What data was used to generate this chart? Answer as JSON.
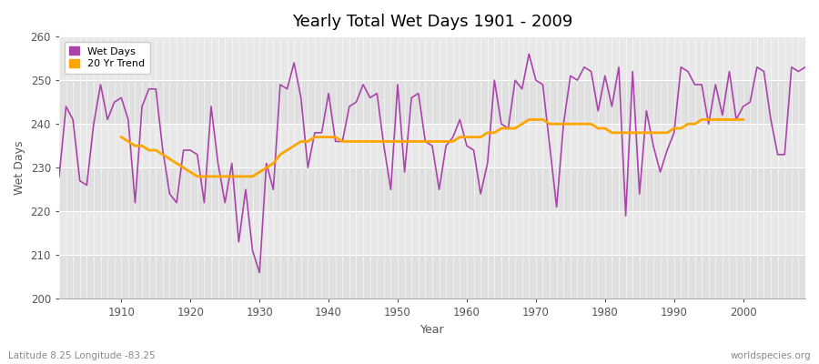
{
  "title": "Yearly Total Wet Days 1901 - 2009",
  "xlabel": "Year",
  "ylabel": "Wet Days",
  "subtitle_left": "Latitude 8.25 Longitude -83.25",
  "subtitle_right": "worldspecies.org",
  "ylim": [
    200,
    260
  ],
  "xlim": [
    1901,
    2009
  ],
  "yticks": [
    200,
    210,
    220,
    230,
    240,
    250,
    260
  ],
  "xticks": [
    1910,
    1920,
    1930,
    1940,
    1950,
    1960,
    1970,
    1980,
    1990,
    2000
  ],
  "line_color": "#AA44AA",
  "trend_color": "#FFA500",
  "fig_bg_color": "#FFFFFF",
  "plot_bg_color": "#E8E8E8",
  "band_color_dark": "#DCDCDC",
  "band_color_light": "#EBEBEB",
  "legend_wet": "Wet Days",
  "legend_trend": "20 Yr Trend",
  "wet_days": {
    "1901": 228,
    "1902": 244,
    "1903": 241,
    "1904": 227,
    "1905": 226,
    "1906": 240,
    "1907": 249,
    "1908": 241,
    "1909": 245,
    "1910": 246,
    "1911": 241,
    "1912": 222,
    "1913": 244,
    "1914": 248,
    "1915": 248,
    "1916": 234,
    "1917": 224,
    "1918": 222,
    "1919": 234,
    "1920": 234,
    "1921": 233,
    "1922": 222,
    "1923": 244,
    "1924": 231,
    "1925": 222,
    "1926": 231,
    "1927": 213,
    "1928": 225,
    "1929": 211,
    "1930": 206,
    "1931": 231,
    "1932": 225,
    "1933": 249,
    "1934": 248,
    "1935": 254,
    "1936": 246,
    "1937": 230,
    "1938": 238,
    "1939": 238,
    "1940": 247,
    "1941": 236,
    "1942": 236,
    "1943": 244,
    "1944": 245,
    "1945": 249,
    "1946": 246,
    "1947": 247,
    "1948": 235,
    "1949": 225,
    "1950": 249,
    "1951": 229,
    "1952": 246,
    "1953": 247,
    "1954": 236,
    "1955": 235,
    "1956": 225,
    "1957": 235,
    "1958": 237,
    "1959": 241,
    "1960": 235,
    "1961": 234,
    "1962": 224,
    "1963": 231,
    "1964": 250,
    "1965": 240,
    "1966": 239,
    "1967": 250,
    "1968": 248,
    "1969": 256,
    "1970": 250,
    "1971": 249,
    "1972": 235,
    "1973": 221,
    "1974": 240,
    "1975": 251,
    "1976": 250,
    "1977": 253,
    "1978": 252,
    "1979": 243,
    "1980": 251,
    "1981": 244,
    "1982": 253,
    "1983": 219,
    "1984": 252,
    "1985": 224,
    "1986": 243,
    "1987": 235,
    "1988": 229,
    "1989": 234,
    "1990": 238,
    "1991": 253,
    "1992": 252,
    "1993": 249,
    "1994": 249,
    "1995": 240,
    "1996": 249,
    "1997": 242,
    "1998": 252,
    "1999": 241,
    "2000": 244,
    "2001": 245,
    "2002": 253,
    "2003": 252,
    "2004": 241,
    "2005": 233,
    "2006": 233,
    "2007": 253,
    "2008": 252,
    "2009": 253
  },
  "trend_days": {
    "1910": 237,
    "1911": 236,
    "1912": 235,
    "1913": 235,
    "1914": 234,
    "1915": 234,
    "1916": 233,
    "1917": 232,
    "1918": 231,
    "1919": 230,
    "1920": 229,
    "1921": 228,
    "1922": 228,
    "1923": 228,
    "1924": 228,
    "1925": 228,
    "1926": 228,
    "1927": 228,
    "1928": 228,
    "1929": 228,
    "1930": 229,
    "1931": 230,
    "1932": 231,
    "1933": 233,
    "1934": 234,
    "1935": 235,
    "1936": 236,
    "1937": 236,
    "1938": 237,
    "1939": 237,
    "1940": 237,
    "1941": 237,
    "1942": 236,
    "1943": 236,
    "1944": 236,
    "1945": 236,
    "1946": 236,
    "1947": 236,
    "1948": 236,
    "1949": 236,
    "1950": 236,
    "1951": 236,
    "1952": 236,
    "1953": 236,
    "1954": 236,
    "1955": 236,
    "1956": 236,
    "1957": 236,
    "1958": 236,
    "1959": 237,
    "1960": 237,
    "1961": 237,
    "1962": 237,
    "1963": 238,
    "1964": 238,
    "1965": 239,
    "1966": 239,
    "1967": 239,
    "1968": 240,
    "1969": 241,
    "1970": 241,
    "1971": 241,
    "1972": 240,
    "1973": 240,
    "1974": 240,
    "1975": 240,
    "1976": 240,
    "1977": 240,
    "1978": 240,
    "1979": 239,
    "1980": 239,
    "1981": 238,
    "1982": 238,
    "1983": 238,
    "1984": 238,
    "1985": 238,
    "1986": 238,
    "1987": 238,
    "1988": 238,
    "1989": 238,
    "1990": 239,
    "1991": 239,
    "1992": 240,
    "1993": 240,
    "1994": 241,
    "1995": 241,
    "1996": 241,
    "1997": 241,
    "1998": 241,
    "1999": 241,
    "2000": 241
  },
  "horizontal_bands": [
    [
      200,
      210,
      "#E0E0E0"
    ],
    [
      210,
      220,
      "#E8E8E8"
    ],
    [
      220,
      230,
      "#E0E0E0"
    ],
    [
      230,
      240,
      "#E8E8E8"
    ],
    [
      240,
      250,
      "#E0E0E0"
    ],
    [
      250,
      260,
      "#E8E8E8"
    ]
  ]
}
